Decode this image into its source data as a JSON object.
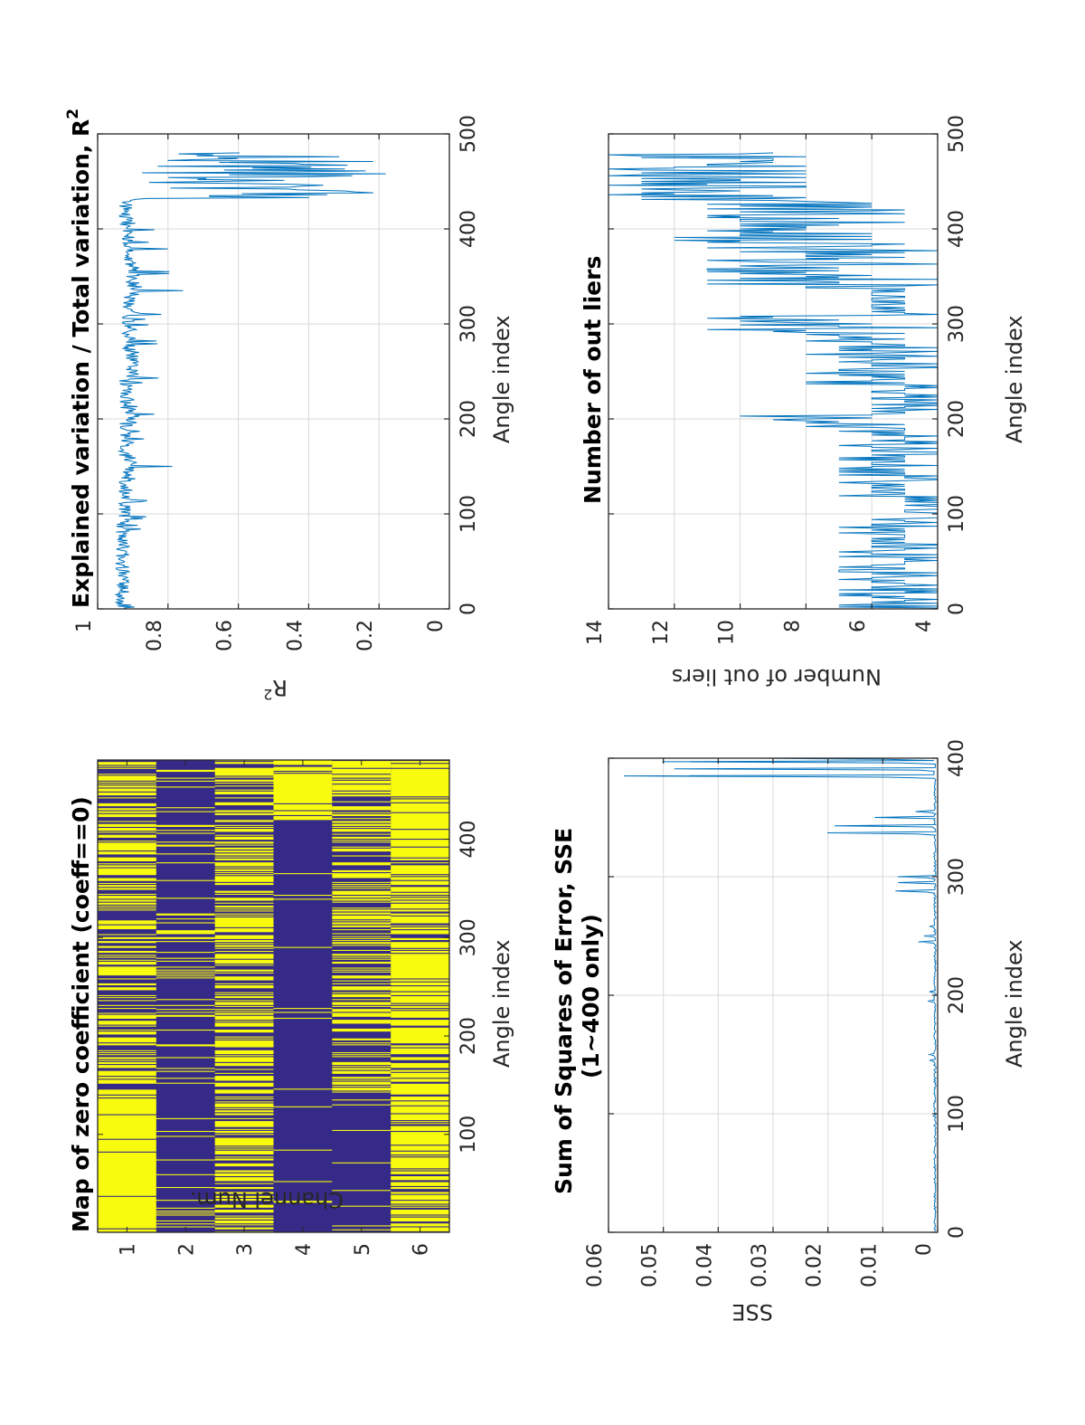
{
  "figure": {
    "orientation": "rotated 90 degrees clockwise (landscape figure printed on portrait page)",
    "colors": {
      "line": "#0072BD",
      "zero": "#352A87",
      "nonzero": "#F9FB0E",
      "grid": "#d9d9d9",
      "axes": "#262626"
    }
  },
  "chart_data": [
    {
      "id": "zero-map",
      "type": "heatmap",
      "title": "Map of zero coefficient (coeff==0)",
      "xlabel": "Angle index",
      "ylabel": "Channel Num.",
      "xticks": [
        "100",
        "200",
        "300",
        "400"
      ],
      "yticks": [
        "1",
        "2",
        "3",
        "4",
        "5",
        "6"
      ],
      "xlim": [
        0.5,
        480.5
      ],
      "ylim": [
        0.5,
        6.5
      ],
      "grid": false,
      "value_legend": {
        "0": "coeff == 0 (dark blue)",
        "1": "coeff != 0 (yellow)"
      },
      "channel_segments": [
        {
          "channel": 1,
          "mostly_zero_ranges": [
            [
              1,
              3
            ],
            [
              138,
              181
            ],
            [
              190,
              430
            ],
            [
              440,
              480
            ]
          ],
          "notes": "dense alternating stripes 138-480; solid nonzero 1-137 except thin gaps"
        },
        {
          "channel": 2,
          "mostly_zero_ranges": [
            [
              1,
              480
            ]
          ],
          "notes": "mostly zero with sparse nonzero lines"
        },
        {
          "channel": 3,
          "mostly_zero_ranges": [
            [
              390,
              440
            ],
            [
              150,
              200
            ]
          ],
          "notes": "alternating stripes throughout"
        },
        {
          "channel": 4,
          "mostly_zero_ranges": [
            [
              1,
              420
            ]
          ],
          "notes": "nonzero block ~420-480"
        },
        {
          "channel": 5,
          "mostly_zero_ranges": [
            [
              1,
              130
            ],
            [
              330,
              360
            ]
          ],
          "notes": "stripes 130-480; nonzero block ~450-480"
        },
        {
          "channel": 6,
          "mostly_zero_ranges": [
            [
              400,
              410
            ]
          ],
          "notes": "mostly nonzero with dark stripes"
        }
      ]
    },
    {
      "id": "r2",
      "type": "line",
      "title": "Explained variation / Total variation, R",
      "title_superscript": "2",
      "xlabel": "Angle index",
      "ylabel": "R",
      "ylabel_superscript": "2",
      "xlim": [
        0,
        500
      ],
      "ylim": [
        0,
        1
      ],
      "xticks": [
        "0",
        "100",
        "200",
        "300",
        "400",
        "500"
      ],
      "yticks": [
        "0",
        "0.2",
        "0.4",
        "0.6",
        "0.8",
        "1"
      ],
      "grid": true,
      "series": [
        {
          "name": "R2",
          "segments": [
            {
              "x_range": [
                1,
                95
              ],
              "baseline": 0.93,
              "min": 0.87,
              "max": 0.95
            },
            {
              "x_range": [
                95,
                140
              ],
              "baseline": 0.92,
              "min": 0.85,
              "max": 0.94
            },
            {
              "x_range": [
                140,
                160
              ],
              "baseline": 0.91,
              "min": 0.74,
              "max": 0.94
            },
            {
              "x_range": [
                160,
                195
              ],
              "baseline": 0.92,
              "min": 0.86,
              "max": 0.94
            },
            {
              "x_range": [
                195,
                210
              ],
              "baseline": 0.9,
              "min": 0.75,
              "max": 0.93
            },
            {
              "x_range": [
                210,
                240
              ],
              "baseline": 0.92,
              "min": 0.87,
              "max": 0.94
            },
            {
              "x_range": [
                240,
                270
              ],
              "baseline": 0.9,
              "min": 0.77,
              "max": 0.93
            },
            {
              "x_range": [
                270,
                330
              ],
              "baseline": 0.91,
              "min": 0.8,
              "max": 0.94
            },
            {
              "x_range": [
                330,
                360
              ],
              "baseline": 0.9,
              "min": 0.75,
              "max": 0.93
            },
            {
              "x_range": [
                360,
                400
              ],
              "baseline": 0.91,
              "min": 0.75,
              "max": 0.96
            },
            {
              "x_range": [
                400,
                430
              ],
              "baseline": 0.92,
              "min": 0.89,
              "max": 0.96
            },
            {
              "x_range": [
                430,
                480
              ],
              "baseline": 0.55,
              "min": 0.18,
              "max": 0.91
            }
          ]
        }
      ]
    },
    {
      "id": "sse",
      "type": "line",
      "title": "Sum of Squares of Error, SSE",
      "subtitle": "(1~400 only)",
      "xlabel": "Angle index",
      "ylabel": "SSE",
      "xlim": [
        0,
        400
      ],
      "ylim": [
        0,
        0.06
      ],
      "xticks": [
        "0",
        "100",
        "200",
        "300",
        "400"
      ],
      "yticks": [
        "0",
        "0.01",
        "0.02",
        "0.03",
        "0.04",
        "0.05",
        "0.06"
      ],
      "grid": true,
      "series": [
        {
          "name": "SSE",
          "spikes": [
            {
              "x": 98,
              "y": 0.0008
            },
            {
              "x": 145,
              "y": 0.0015
            },
            {
              "x": 150,
              "y": 0.0015
            },
            {
              "x": 195,
              "y": 0.0018
            },
            {
              "x": 203,
              "y": 0.0015
            },
            {
              "x": 245,
              "y": 0.0035
            },
            {
              "x": 250,
              "y": 0.0025
            },
            {
              "x": 258,
              "y": 0.0015
            },
            {
              "x": 288,
              "y": 0.0077
            },
            {
              "x": 295,
              "y": 0.0072
            },
            {
              "x": 300,
              "y": 0.0073
            },
            {
              "x": 337,
              "y": 0.0201
            },
            {
              "x": 343,
              "y": 0.0188
            },
            {
              "x": 350,
              "y": 0.0115
            },
            {
              "x": 355,
              "y": 0.004
            },
            {
              "x": 385,
              "y": 0.0572
            },
            {
              "x": 391,
              "y": 0.048
            },
            {
              "x": 397,
              "y": 0.0502
            },
            {
              "x": 400,
              "y": 0.0322
            }
          ],
          "baseline": 0.0003
        }
      ]
    },
    {
      "id": "outliers",
      "type": "line",
      "title": "Number of out liers",
      "xlabel": "Angle index",
      "ylabel": "Number of out liers",
      "xlim": [
        0,
        500
      ],
      "ylim": [
        4,
        14
      ],
      "xticks": [
        "0",
        "100",
        "200",
        "300",
        "400",
        "500"
      ],
      "yticks": [
        "4",
        "6",
        "8",
        "10",
        "12",
        "14"
      ],
      "grid": true,
      "series": [
        {
          "name": "outliers",
          "segments": [
            {
              "x_range": [
                1,
                95
              ],
              "min": 4,
              "max": 7
            },
            {
              "x_range": [
                95,
                118
              ],
              "min": 4,
              "max": 5
            },
            {
              "x_range": [
                118,
                190
              ],
              "min": 4,
              "max": 7
            },
            {
              "x_range": [
                190,
                205
              ],
              "min": 5,
              "max": 10
            },
            {
              "x_range": [
                205,
                235
              ],
              "min": 4,
              "max": 6
            },
            {
              "x_range": [
                235,
                290
              ],
              "min": 4,
              "max": 8
            },
            {
              "x_range": [
                290,
                310
              ],
              "min": 4,
              "max": 11
            },
            {
              "x_range": [
                310,
                335
              ],
              "min": 5,
              "max": 6
            },
            {
              "x_range": [
                335,
                382
              ],
              "min": 4,
              "max": 11
            },
            {
              "x_range": [
                382,
                430
              ],
              "min": 5,
              "max": 12
            },
            {
              "x_range": [
                430,
                480
              ],
              "min": 8,
              "max": 14
            }
          ]
        }
      ]
    }
  ]
}
